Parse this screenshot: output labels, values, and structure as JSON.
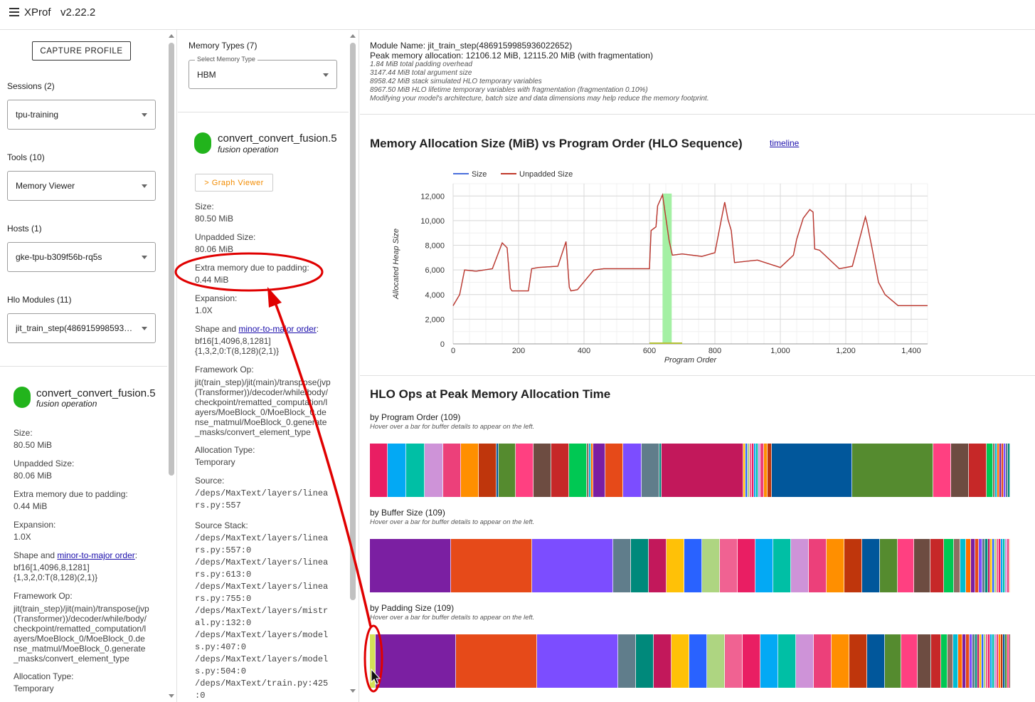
{
  "app": {
    "title": "XProf",
    "version": "v2.22.2"
  },
  "sidebar": {
    "capture_label": "CAPTURE PROFILE",
    "sessions_label": "Sessions (2)",
    "sessions_value": "tpu-training",
    "tools_label": "Tools (10)",
    "tools_value": "Memory Viewer",
    "hosts_label": "Hosts (1)",
    "hosts_value": "gke-tpu-b309f56b-rq5s",
    "modules_label": "Hlo Modules (11)",
    "modules_value": "jit_train_step(486915998593…"
  },
  "op_details": {
    "name": "convert_convert_fusion.5",
    "category": "fusion operation",
    "graph_viewer_label": "> Graph Viewer",
    "size_label": "Size:",
    "size_value": "80.50 MiB",
    "unpadded_label": "Unpadded Size:",
    "unpadded_value": "80.06 MiB",
    "padding_label": "Extra memory due to padding:",
    "padding_value": "0.44 MiB",
    "expansion_label": "Expansion:",
    "expansion_value": "1.0X",
    "shape_prefix": "Shape and ",
    "shape_link": "minor-to-major order",
    "shape_suffix": ":",
    "shape_value_1": "bf16[1,4096,8,1281]",
    "shape_value_2": "{1,3,2,0:T(8,128)(2,1)}",
    "framework_label": "Framework Op:",
    "framework_lines": [
      "jit(train_step)/jit(main)/transpose(jvp",
      "(Transformer))/decoder/while/body/",
      "checkpoint/rematted_computation/l",
      "ayers/MoeBlock_0/MoeBlock_0.de",
      "nse_matmul/MoeBlock_0.generate",
      "_masks/convert_element_type"
    ],
    "alloc_label": "Allocation Type:",
    "alloc_value": "Temporary",
    "source_label": "Source:",
    "source_lines": [
      "/deps/MaxText/layers/linea",
      "rs.py:557"
    ],
    "stack_label": "Source Stack:",
    "stack_lines": [
      "/deps/MaxText/layers/linea",
      "rs.py:557:0",
      "/deps/MaxText/layers/linea",
      "rs.py:613:0",
      "/deps/MaxText/layers/linea",
      "rs.py:755:0",
      "/deps/MaxText/layers/mistr",
      "al.py:132:0",
      "/deps/MaxText/layers/model",
      "s.py:407:0",
      "/deps/MaxText/layers/model",
      "s.py:504:0",
      "/deps/MaxText/train.py:425",
      ":0"
    ]
  },
  "memory_types": {
    "label": "Memory Types (7)",
    "select_legend": "Select Memory Type",
    "value": "HBM"
  },
  "module_info": {
    "name_line": "Module Name: jit_train_step(4869159985936022652)",
    "peak_line": "Peak memory allocation: 12106.12 MiB, 12115.20 MiB (with fragmentation)",
    "details": [
      "1.84 MiB total padding overhead",
      "3147.44 MiB total argument size",
      "8958.42 MiB stack simulated HLO temporary variables",
      "8967.50 MiB HLO lifetime temporary variables with fragmentation (fragmentation 0.10%)",
      "Modifying your model's architecture, batch size and data dimensions may help reduce the memory footprint."
    ]
  },
  "chart_section": {
    "title": "Memory Allocation Size (MiB) vs Program Order (HLO Sequence)",
    "timeline_link": "timeline"
  },
  "chart_data": {
    "type": "line",
    "xlabel": "Program Order",
    "ylabel": "Allocated Heap Size",
    "xlim": [
      0,
      1450
    ],
    "ylim": [
      0,
      13000
    ],
    "x_ticks": [
      "0",
      "200",
      "400",
      "600",
      "800",
      "1,000",
      "1,200",
      "1,400"
    ],
    "y_ticks": [
      "0",
      "2,000",
      "4,000",
      "6,000",
      "8,000",
      "10,000",
      "12,000"
    ],
    "legend": "top-left",
    "highlight_range": [
      640,
      668
    ],
    "series": [
      {
        "name": "Size",
        "color": "#4a6fdc",
        "x": [
          0,
          20,
          35,
          70,
          120,
          140,
          150,
          165,
          175,
          180,
          230,
          240,
          260,
          320,
          345,
          355,
          360,
          380,
          430,
          460,
          500,
          600,
          605,
          620,
          625,
          640,
          660,
          670,
          700,
          760,
          800,
          830,
          840,
          850,
          860,
          930,
          1000,
          1040,
          1050,
          1070,
          1090,
          1100,
          1105,
          1120,
          1180,
          1220,
          1260,
          1265,
          1280,
          1300,
          1320,
          1360,
          1450
        ],
        "y": [
          3100,
          4000,
          6000,
          5900,
          6100,
          7500,
          8200,
          7800,
          4500,
          4300,
          4300,
          6100,
          6200,
          6300,
          8300,
          4600,
          4300,
          4400,
          6000,
          6100,
          6100,
          6100,
          9200,
          9500,
          11200,
          12100,
          8400,
          7200,
          7300,
          7100,
          7400,
          11500,
          10100,
          9200,
          6600,
          6800,
          6200,
          7200,
          8500,
          10200,
          10900,
          10700,
          7700,
          7600,
          6100,
          6300,
          10300,
          9800,
          7800,
          5000,
          4000,
          3100,
          3100
        ]
      },
      {
        "name": "Unpadded Size",
        "color": "#c0392b",
        "x": [
          0,
          20,
          35,
          70,
          120,
          140,
          150,
          165,
          175,
          180,
          230,
          240,
          260,
          320,
          345,
          355,
          360,
          380,
          430,
          460,
          500,
          600,
          605,
          620,
          625,
          640,
          660,
          670,
          700,
          760,
          800,
          830,
          840,
          850,
          860,
          930,
          1000,
          1040,
          1050,
          1070,
          1090,
          1100,
          1105,
          1120,
          1180,
          1220,
          1260,
          1265,
          1280,
          1300,
          1320,
          1360,
          1450
        ],
        "y": [
          3100,
          4000,
          6000,
          5900,
          6100,
          7500,
          8200,
          7800,
          4500,
          4300,
          4300,
          6100,
          6200,
          6300,
          8300,
          4600,
          4300,
          4400,
          6000,
          6100,
          6100,
          6100,
          9200,
          9500,
          11200,
          12100,
          8400,
          7200,
          7300,
          7100,
          7400,
          11500,
          10100,
          9200,
          6600,
          6800,
          6200,
          7200,
          8500,
          10200,
          10900,
          10700,
          7700,
          7600,
          6100,
          6300,
          10300,
          9800,
          7800,
          5000,
          4000,
          3100,
          3100
        ]
      }
    ]
  },
  "hlo_ops": {
    "title": "HLO Ops at Peak Memory Allocation Time",
    "program_order_title": "by Program Order (109)",
    "buffer_size_title": "by Buffer Size (109)",
    "padding_size_title": "by Padding Size (109)",
    "hint": "Hover over a bar for buffer details to appear on the left.",
    "program_order_widths": [
      25,
      26,
      26,
      26,
      25,
      25,
      25,
      3,
      24,
      25,
      25,
      25,
      25,
      3,
      3,
      3,
      17,
      25,
      26,
      25,
      3,
      115,
      3,
      3,
      3,
      3,
      3,
      3,
      3,
      3,
      5,
      5,
      6,
      113,
      114,
      25,
      25,
      25,
      9
    ],
    "buffer_size_widths": [
      114,
      114,
      114,
      25,
      25,
      25,
      25,
      25,
      25,
      25,
      25,
      25,
      25,
      25,
      25,
      25,
      25,
      25,
      25,
      23,
      23,
      19,
      14,
      9,
      8,
      7,
      6,
      5,
      5,
      4,
      4,
      3,
      3,
      3,
      3,
      3,
      3,
      3,
      3,
      3,
      3,
      3,
      3
    ],
    "padding_size_widths": [
      8,
      113,
      114,
      114,
      25,
      25,
      25,
      25,
      25,
      25,
      25,
      25,
      25,
      25,
      25,
      25,
      25,
      25,
      25,
      23,
      23,
      19,
      14,
      9,
      8,
      7,
      6,
      5,
      5,
      4,
      4,
      3,
      3,
      3,
      3,
      3,
      3,
      3,
      3,
      3,
      3
    ],
    "palette": [
      "#e91e63",
      "#03a9f4",
      "#00bfa5",
      "#ce93d8",
      "#ec407a",
      "#ff8f00",
      "#bf360c",
      "#01579b",
      "#558b2f",
      "#ff4081",
      "#6d4c41",
      "#c62828",
      "#00c853",
      "#8d6e63",
      "#00bcd4",
      "#ff6d00",
      "#7b1fa2",
      "#e64a19",
      "#7c4dff",
      "#607d8b",
      "#00897b",
      "#c2185b",
      "#ffc107",
      "#2962ff",
      "#aed581",
      "#f06292"
    ]
  }
}
